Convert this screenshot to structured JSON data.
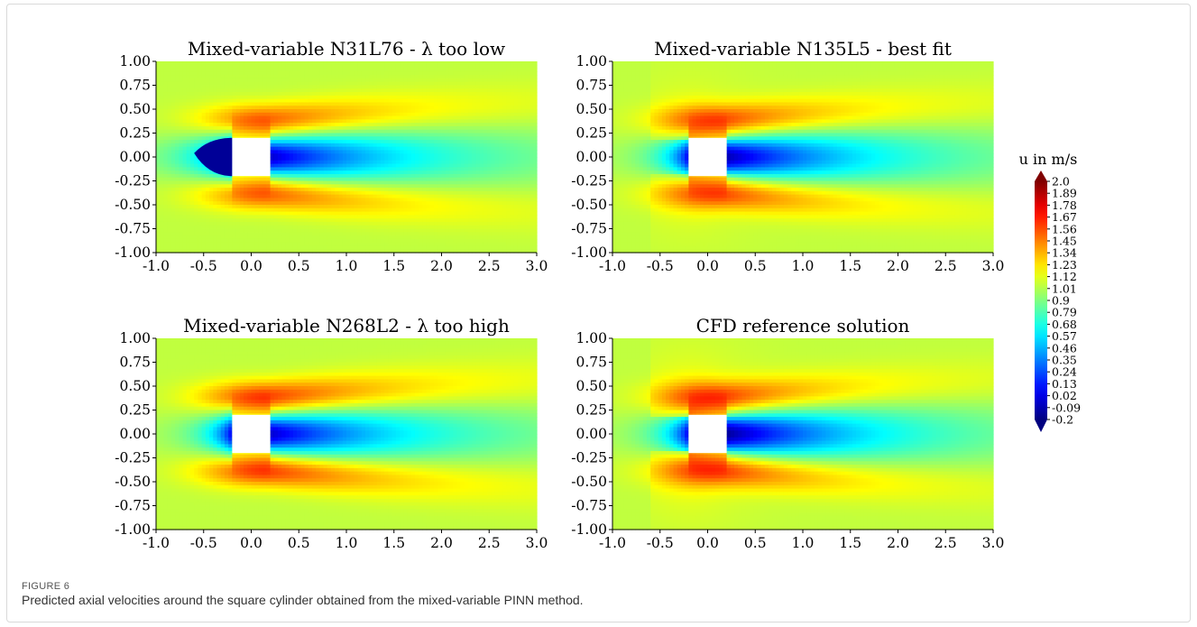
{
  "figure": {
    "label": "FIGURE 6",
    "caption": "Predicted axial velocities around the square cylinder obtained from the mixed-variable PINN method."
  },
  "colorbar": {
    "title": "u in m/s",
    "ticks": [
      "2.0",
      "1.89",
      "1.78",
      "1.67",
      "1.56",
      "1.45",
      "1.34",
      "1.23",
      "1.12",
      "1.01",
      "0.9",
      "0.79",
      "0.68",
      "0.57",
      "0.46",
      "0.35",
      "0.24",
      "0.13",
      "0.02",
      "-0.09",
      "-0.2"
    ],
    "min": -0.2,
    "max": 2.0,
    "colormap": "jet"
  },
  "chart_data": [
    {
      "type": "heatmap",
      "title": "Mixed-variable N31L76 - λ too low",
      "xlim": [
        -1.0,
        3.0
      ],
      "ylim": [
        -1.0,
        1.0
      ],
      "xticks": [
        "-1.0",
        "-0.5",
        "0.0",
        "0.5",
        "1.0",
        "1.5",
        "2.0",
        "2.5",
        "3.0"
      ],
      "yticks": [
        "1.00",
        "0.75",
        "0.50",
        "0.25",
        "0.00",
        "-0.25",
        "-0.50",
        "-0.75",
        "-1.00"
      ],
      "obstacle": {
        "shape": "square",
        "x": [
          -0.2,
          0.2
        ],
        "y": [
          -0.2,
          0.2
        ]
      },
      "variant": "low"
    },
    {
      "type": "heatmap",
      "title": "Mixed-variable N135L5 - best fit",
      "xlim": [
        -1.0,
        3.0
      ],
      "ylim": [
        -1.0,
        1.0
      ],
      "xticks": [
        "-1.0",
        "-0.5",
        "0.0",
        "0.5",
        "1.0",
        "1.5",
        "2.0",
        "2.5",
        "3.0"
      ],
      "yticks": [
        "1.00",
        "0.75",
        "0.50",
        "0.25",
        "0.00",
        "-0.25",
        "-0.50",
        "-0.75",
        "-1.00"
      ],
      "obstacle": {
        "shape": "square",
        "x": [
          -0.2,
          0.2
        ],
        "y": [
          -0.2,
          0.2
        ]
      },
      "variant": "best"
    },
    {
      "type": "heatmap",
      "title": "Mixed-variable N268L2 - λ too high",
      "xlim": [
        -1.0,
        3.0
      ],
      "ylim": [
        -1.0,
        1.0
      ],
      "xticks": [
        "-1.0",
        "-0.5",
        "0.0",
        "0.5",
        "1.0",
        "1.5",
        "2.0",
        "2.5",
        "3.0"
      ],
      "yticks": [
        "1.00",
        "0.75",
        "0.50",
        "0.25",
        "0.00",
        "-0.25",
        "-0.50",
        "-0.75",
        "-1.00"
      ],
      "obstacle": {
        "shape": "square",
        "x": [
          -0.2,
          0.2
        ],
        "y": [
          -0.2,
          0.2
        ]
      },
      "variant": "high"
    },
    {
      "type": "heatmap",
      "title": "CFD reference solution",
      "xlim": [
        -1.0,
        3.0
      ],
      "ylim": [
        -1.0,
        1.0
      ],
      "xticks": [
        "-1.0",
        "-0.5",
        "0.0",
        "0.5",
        "1.0",
        "1.5",
        "2.0",
        "2.5",
        "3.0"
      ],
      "yticks": [
        "1.00",
        "0.75",
        "0.50",
        "0.25",
        "0.00",
        "-0.25",
        "-0.50",
        "-0.75",
        "-1.00"
      ],
      "obstacle": {
        "shape": "square",
        "x": [
          -0.2,
          0.2
        ],
        "y": [
          -0.2,
          0.2
        ]
      },
      "variant": "ref"
    }
  ]
}
